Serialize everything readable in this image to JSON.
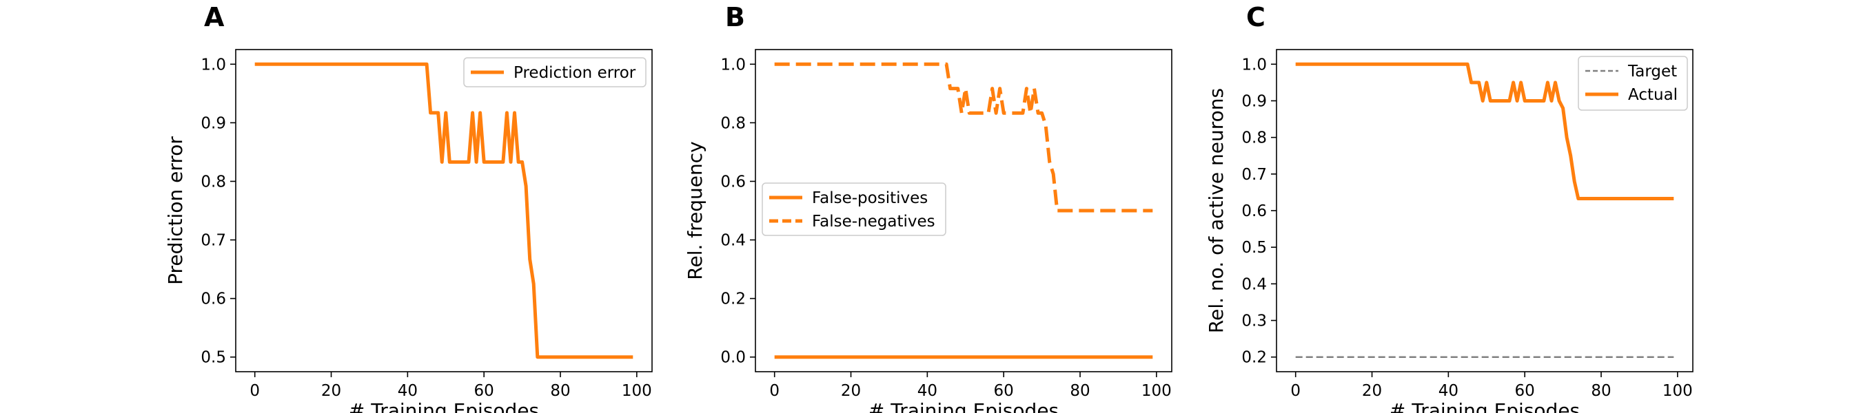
{
  "colors": {
    "series": "#ff7f0e",
    "target": "#808080",
    "axes": "#000000",
    "legend_border": "#cccccc"
  },
  "chart_data": [
    {
      "type": "line",
      "panel_label": "A",
      "xlabel": "# Training Episodes",
      "ylabel": "Prediction error",
      "xlim": [
        -5,
        104
      ],
      "ylim": [
        0.475,
        1.025
      ],
      "xticks": [
        0,
        20,
        40,
        60,
        80,
        100
      ],
      "yticks": [
        0.5,
        0.6,
        0.7,
        0.8,
        0.9,
        1.0
      ],
      "ytick_labels": [
        "0.5",
        "0.6",
        "0.7",
        "0.8",
        "0.9",
        "1.0"
      ],
      "legend_position": "top-right",
      "series": [
        {
          "name": "Prediction error",
          "style": "solid",
          "x": [
            0,
            1,
            2,
            3,
            4,
            5,
            6,
            7,
            8,
            9,
            10,
            11,
            12,
            13,
            14,
            15,
            16,
            17,
            18,
            19,
            20,
            21,
            22,
            23,
            24,
            25,
            26,
            27,
            28,
            29,
            30,
            31,
            32,
            33,
            34,
            35,
            36,
            37,
            38,
            39,
            40,
            41,
            42,
            43,
            44,
            45,
            46,
            47,
            48,
            49,
            50,
            51,
            52,
            53,
            54,
            55,
            56,
            57,
            58,
            59,
            60,
            61,
            62,
            63,
            64,
            65,
            66,
            67,
            68,
            69,
            70,
            71,
            72,
            73,
            74,
            75,
            76,
            77,
            78,
            79,
            80,
            81,
            82,
            83,
            84,
            85,
            86,
            87,
            88,
            89,
            90,
            91,
            92,
            93,
            94,
            95,
            96,
            97,
            98,
            99
          ],
          "values": [
            1,
            1,
            1,
            1,
            1,
            1,
            1,
            1,
            1,
            1,
            1,
            1,
            1,
            1,
            1,
            1,
            1,
            1,
            1,
            1,
            1,
            1,
            1,
            1,
            1,
            1,
            1,
            1,
            1,
            1,
            1,
            1,
            1,
            1,
            1,
            1,
            1,
            1,
            1,
            1,
            1,
            1,
            1,
            1,
            1,
            1,
            0.917,
            0.917,
            0.917,
            0.833,
            0.917,
            0.833,
            0.833,
            0.833,
            0.833,
            0.833,
            0.833,
            0.917,
            0.833,
            0.917,
            0.833,
            0.833,
            0.833,
            0.833,
            0.833,
            0.833,
            0.917,
            0.833,
            0.917,
            0.833,
            0.833,
            0.792,
            0.667,
            0.625,
            0.5,
            0.5,
            0.5,
            0.5,
            0.5,
            0.5,
            0.5,
            0.5,
            0.5,
            0.5,
            0.5,
            0.5,
            0.5,
            0.5,
            0.5,
            0.5,
            0.5,
            0.5,
            0.5,
            0.5,
            0.5,
            0.5,
            0.5,
            0.5,
            0.5,
            0.5
          ]
        }
      ]
    },
    {
      "type": "line",
      "panel_label": "B",
      "xlabel": "# Training Episodes",
      "ylabel": "Rel. frequency",
      "xlim": [
        -5,
        104
      ],
      "ylim": [
        -0.05,
        1.05
      ],
      "xticks": [
        0,
        20,
        40,
        60,
        80,
        100
      ],
      "yticks": [
        0.0,
        0.2,
        0.4,
        0.6,
        0.8,
        1.0
      ],
      "ytick_labels": [
        "0.0",
        "0.2",
        "0.4",
        "0.6",
        "0.8",
        "1.0"
      ],
      "legend_position": "center-left",
      "series": [
        {
          "name": "False-positives",
          "style": "solid",
          "x": [
            0,
            99
          ],
          "values": [
            0,
            0
          ]
        },
        {
          "name": "False-negatives",
          "style": "dashed",
          "x": [
            0,
            1,
            2,
            3,
            4,
            5,
            6,
            7,
            8,
            9,
            10,
            11,
            12,
            13,
            14,
            15,
            16,
            17,
            18,
            19,
            20,
            21,
            22,
            23,
            24,
            25,
            26,
            27,
            28,
            29,
            30,
            31,
            32,
            33,
            34,
            35,
            36,
            37,
            38,
            39,
            40,
            41,
            42,
            43,
            44,
            45,
            46,
            47,
            48,
            49,
            50,
            51,
            52,
            53,
            54,
            55,
            56,
            57,
            58,
            59,
            60,
            61,
            62,
            63,
            64,
            65,
            66,
            67,
            68,
            69,
            70,
            71,
            72,
            73,
            74,
            75,
            76,
            77,
            78,
            79,
            80,
            81,
            82,
            83,
            84,
            85,
            86,
            87,
            88,
            89,
            90,
            91,
            92,
            93,
            94,
            95,
            96,
            97,
            98,
            99
          ],
          "values": [
            1,
            1,
            1,
            1,
            1,
            1,
            1,
            1,
            1,
            1,
            1,
            1,
            1,
            1,
            1,
            1,
            1,
            1,
            1,
            1,
            1,
            1,
            1,
            1,
            1,
            1,
            1,
            1,
            1,
            1,
            1,
            1,
            1,
            1,
            1,
            1,
            1,
            1,
            1,
            1,
            1,
            1,
            1,
            1,
            1,
            1,
            0.917,
            0.917,
            0.917,
            0.833,
            0.917,
            0.833,
            0.833,
            0.833,
            0.833,
            0.833,
            0.833,
            0.917,
            0.833,
            0.917,
            0.833,
            0.833,
            0.833,
            0.833,
            0.833,
            0.833,
            0.917,
            0.833,
            0.917,
            0.833,
            0.833,
            0.792,
            0.667,
            0.625,
            0.5,
            0.5,
            0.5,
            0.5,
            0.5,
            0.5,
            0.5,
            0.5,
            0.5,
            0.5,
            0.5,
            0.5,
            0.5,
            0.5,
            0.5,
            0.5,
            0.5,
            0.5,
            0.5,
            0.5,
            0.5,
            0.5,
            0.5,
            0.5,
            0.5,
            0.5
          ]
        }
      ]
    },
    {
      "type": "line",
      "panel_label": "C",
      "xlabel": "# Training Episodes",
      "ylabel": "Rel. no. of active neurons",
      "xlim": [
        -5,
        104
      ],
      "ylim": [
        0.16,
        1.04
      ],
      "xticks": [
        0,
        20,
        40,
        60,
        80,
        100
      ],
      "yticks": [
        0.2,
        0.3,
        0.4,
        0.5,
        0.6,
        0.7,
        0.8,
        0.9,
        1.0
      ],
      "ytick_labels": [
        "0.2",
        "0.3",
        "0.4",
        "0.5",
        "0.6",
        "0.7",
        "0.8",
        "0.9",
        "1.0"
      ],
      "legend_position": "top-right",
      "series": [
        {
          "name": "Target",
          "style": "thin-dashed",
          "x": [
            0,
            99
          ],
          "values": [
            0.2,
            0.2
          ]
        },
        {
          "name": "Actual",
          "style": "solid",
          "x": [
            0,
            1,
            2,
            3,
            4,
            5,
            6,
            7,
            8,
            9,
            10,
            11,
            12,
            13,
            14,
            15,
            16,
            17,
            18,
            19,
            20,
            21,
            22,
            23,
            24,
            25,
            26,
            27,
            28,
            29,
            30,
            31,
            32,
            33,
            34,
            35,
            36,
            37,
            38,
            39,
            40,
            41,
            42,
            43,
            44,
            45,
            46,
            47,
            48,
            49,
            50,
            51,
            52,
            53,
            54,
            55,
            56,
            57,
            58,
            59,
            60,
            61,
            62,
            63,
            64,
            65,
            66,
            67,
            68,
            69,
            70,
            71,
            72,
            73,
            74,
            75,
            76,
            77,
            78,
            79,
            80,
            81,
            82,
            83,
            84,
            85,
            86,
            87,
            88,
            89,
            90,
            91,
            92,
            93,
            94,
            95,
            96,
            97,
            98,
            99
          ],
          "values": [
            1,
            1,
            1,
            1,
            1,
            1,
            1,
            1,
            1,
            1,
            1,
            1,
            1,
            1,
            1,
            1,
            1,
            1,
            1,
            1,
            1,
            1,
            1,
            1,
            1,
            1,
            1,
            1,
            1,
            1,
            1,
            1,
            1,
            1,
            1,
            1,
            1,
            1,
            1,
            1,
            1,
            1,
            1,
            1,
            1,
            1,
            0.95,
            0.95,
            0.95,
            0.9,
            0.95,
            0.9,
            0.9,
            0.9,
            0.9,
            0.9,
            0.9,
            0.95,
            0.9,
            0.95,
            0.9,
            0.9,
            0.9,
            0.9,
            0.9,
            0.9,
            0.95,
            0.9,
            0.95,
            0.9,
            0.88,
            0.8,
            0.75,
            0.68,
            0.633,
            0.633,
            0.633,
            0.633,
            0.633,
            0.633,
            0.633,
            0.633,
            0.633,
            0.633,
            0.633,
            0.633,
            0.633,
            0.633,
            0.633,
            0.633,
            0.633,
            0.633,
            0.633,
            0.633,
            0.633,
            0.633,
            0.633,
            0.633,
            0.633,
            0.633
          ]
        }
      ]
    }
  ]
}
